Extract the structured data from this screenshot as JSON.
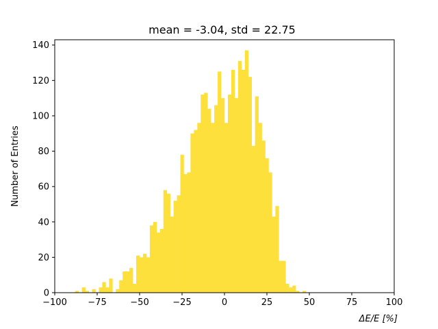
{
  "chart_data": {
    "type": "bar",
    "title": "mean = -3.04, std = 22.75",
    "xlabel": "ΔE/E [%]",
    "ylabel": "Number of Entries",
    "xlim": [
      -100,
      100
    ],
    "ylim": [
      0,
      143
    ],
    "xticks": [
      -100,
      -75,
      -50,
      -25,
      0,
      25,
      50,
      75,
      100
    ],
    "yticks": [
      0,
      20,
      40,
      60,
      80,
      100,
      120,
      140
    ],
    "bin_width": 2,
    "bin_edges": [
      -90,
      -88,
      -86,
      -84,
      -82,
      -80,
      -78,
      -76,
      -74,
      -72,
      -70,
      -68,
      -66,
      -64,
      -62,
      -60,
      -58,
      -56,
      -54,
      -52,
      -50,
      -48,
      -46,
      -44,
      -42,
      -40,
      -38,
      -36,
      -34,
      -32,
      -30,
      -28,
      -26,
      -24,
      -22,
      -20,
      -18,
      -16,
      -14,
      -12,
      -10,
      -8,
      -6,
      -4,
      -2,
      0,
      2,
      4,
      6,
      8,
      10,
      12,
      14,
      16,
      18,
      20,
      22,
      24,
      26,
      28,
      30,
      32,
      34,
      36,
      38,
      40,
      42,
      44,
      46,
      48,
      50
    ],
    "values": [
      0,
      1,
      0,
      3,
      1,
      0,
      2,
      0,
      3,
      6,
      3,
      8,
      0,
      2,
      7,
      12,
      12,
      14,
      5,
      21,
      20,
      22,
      20,
      38,
      40,
      34,
      36,
      58,
      56,
      43,
      52,
      55,
      78,
      67,
      68,
      90,
      92,
      96,
      112,
      113,
      104,
      96,
      106,
      125,
      110,
      96,
      112,
      126,
      110,
      131,
      126,
      137,
      122,
      83,
      111,
      96,
      86,
      76,
      68,
      43,
      49,
      18,
      18,
      5,
      3,
      4,
      1,
      0,
      1,
      0
    ],
    "bar_color": "#fde03b",
    "grid": false,
    "legend": "none"
  }
}
